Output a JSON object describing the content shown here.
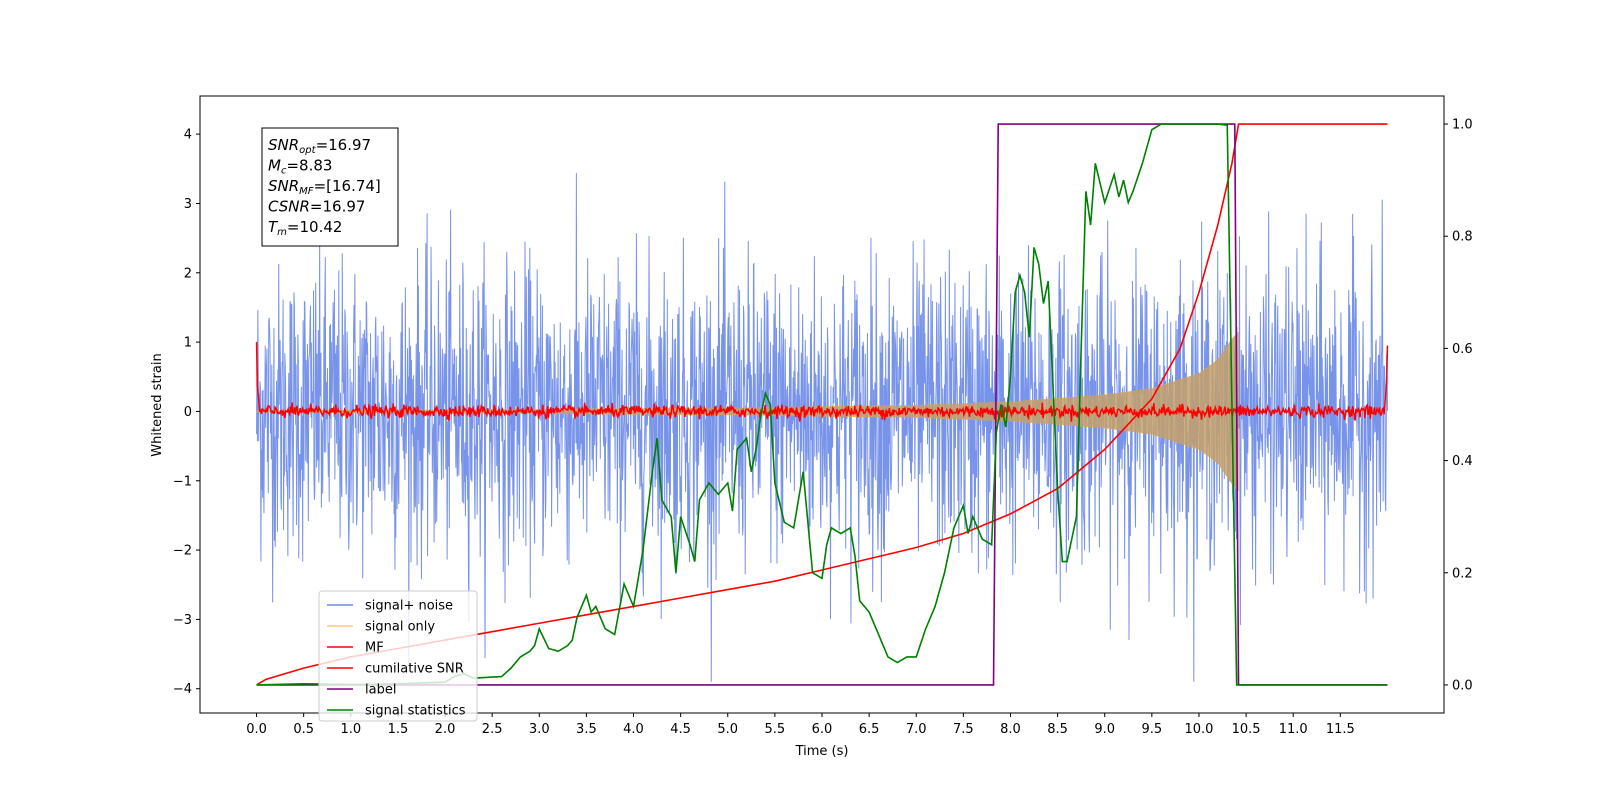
{
  "chart_data": {
    "type": "line",
    "xlabel": "Time (s)",
    "ylabel": "Whitened strain",
    "xlim": [
      -0.6,
      12.6
    ],
    "ylim_left": [
      -4.35,
      4.55
    ],
    "ylim_right": [
      -0.05,
      1.05
    ],
    "x_ticks": [
      "0.0",
      "0.5",
      "1.0",
      "1.5",
      "2.0",
      "2.5",
      "3.0",
      "3.5",
      "4.0",
      "4.5",
      "5.0",
      "5.5",
      "6.0",
      "6.5",
      "7.0",
      "7.5",
      "8.0",
      "8.5",
      "9.0",
      "9.5",
      "10.0",
      "10.5",
      "11.0",
      "11.5"
    ],
    "y_ticks_left": [
      "4",
      "3",
      "2",
      "1",
      "0",
      "−1",
      "−2",
      "−3",
      "−4"
    ],
    "y_ticks_right": [
      "0.0",
      "0.2",
      "0.4",
      "0.6",
      "0.8",
      "1.0"
    ],
    "colors": {
      "signal_noise": "#4a6fe3",
      "signal_only": "#f5a623",
      "mf": "#ff0000",
      "cumulative_snr": "#ff0000",
      "label": "#800080",
      "signal_statistics": "#008000"
    },
    "annotation": {
      "lines": [
        {
          "base": "SNR",
          "sub": "opt",
          "value": "=16.97"
        },
        {
          "base": "M",
          "sub": "c",
          "value": "=8.83"
        },
        {
          "base": "SNR",
          "sub": "MF",
          "value": "=[16.74]"
        },
        {
          "base": "CSNR",
          "sub": "",
          "value": "=16.97"
        },
        {
          "base": "T",
          "sub": "m",
          "value": "=10.42"
        }
      ]
    },
    "legend": {
      "placement": "lower-left",
      "entries": [
        {
          "label": "signal+ noise",
          "color": "#4a6fe3"
        },
        {
          "label": "signal only",
          "color": "#f5a623"
        },
        {
          "label": "MF",
          "color": "#ff0000"
        },
        {
          "label": "cumilative SNR",
          "color": "#ff0000"
        },
        {
          "label": "label",
          "color": "#800080"
        },
        {
          "label": "signal statistics",
          "color": "#008000"
        }
      ]
    },
    "series": [
      {
        "name": "signal+ noise",
        "axis": "left",
        "description_values": "noise band approximately within [-2.5, 2.5] with spikes up to ±4.2, x range [0.0, 12.0]"
      },
      {
        "name": "signal only",
        "axis": "left",
        "chirp_envelope": {
          "x": [
            0,
            5,
            7,
            8,
            9,
            9.5,
            10,
            10.2,
            10.35,
            10.42
          ],
          "amp": [
            0.01,
            0.05,
            0.09,
            0.14,
            0.24,
            0.33,
            0.55,
            0.75,
            1.05,
            1.15
          ]
        }
      },
      {
        "name": "MF",
        "axis": "left",
        "baseline": 0.0,
        "noise_amp": 0.08,
        "start_value": 1.0,
        "end_value": 0.95
      },
      {
        "name": "cumilative SNR",
        "axis": "right",
        "x": [
          0,
          0.1,
          0.5,
          1,
          1.5,
          2,
          2.5,
          3,
          3.5,
          4,
          4.5,
          5,
          5.5,
          6,
          6.5,
          7,
          7.5,
          8,
          8.5,
          9,
          9.5,
          9.8,
          10,
          10.2,
          10.35,
          10.42,
          12.0
        ],
        "y": [
          0.0,
          0.01,
          0.03,
          0.05,
          0.065,
          0.08,
          0.095,
          0.11,
          0.125,
          0.14,
          0.155,
          0.17,
          0.185,
          0.205,
          0.225,
          0.245,
          0.27,
          0.305,
          0.35,
          0.42,
          0.51,
          0.6,
          0.7,
          0.82,
          0.93,
          1.0,
          1.0
        ]
      },
      {
        "name": "label",
        "axis": "right",
        "x": [
          0,
          7.82,
          7.87,
          10.38,
          10.42,
          12.0
        ],
        "y": [
          0,
          0,
          1,
          1,
          0,
          0
        ]
      },
      {
        "name": "signal statistics",
        "axis": "right",
        "x": [
          0.0,
          0.5,
          1.0,
          1.5,
          2.0,
          2.1,
          2.2,
          2.3,
          2.5,
          2.6,
          2.7,
          2.8,
          2.9,
          2.95,
          3.0,
          3.1,
          3.2,
          3.3,
          3.35,
          3.4,
          3.5,
          3.55,
          3.6,
          3.7,
          3.8,
          3.9,
          4.0,
          4.1,
          4.2,
          4.25,
          4.3,
          4.4,
          4.45,
          4.5,
          4.6,
          4.65,
          4.7,
          4.8,
          4.9,
          5.0,
          5.05,
          5.1,
          5.2,
          5.25,
          5.3,
          5.35,
          5.4,
          5.45,
          5.5,
          5.6,
          5.7,
          5.8,
          5.9,
          6.0,
          6.05,
          6.1,
          6.2,
          6.3,
          6.35,
          6.4,
          6.5,
          6.6,
          6.7,
          6.8,
          6.9,
          7.0,
          7.1,
          7.2,
          7.3,
          7.4,
          7.5,
          7.55,
          7.6,
          7.7,
          7.8,
          7.85,
          7.9,
          7.95,
          8.0,
          8.05,
          8.1,
          8.15,
          8.2,
          8.25,
          8.3,
          8.35,
          8.4,
          8.5,
          8.55,
          8.6,
          8.7,
          8.75,
          8.8,
          8.85,
          8.9,
          9.0,
          9.1,
          9.15,
          9.2,
          9.25,
          9.3,
          9.4,
          9.5,
          9.6,
          9.7,
          9.8,
          9.9,
          10.0,
          10.1,
          10.2,
          10.3,
          10.35,
          10.4,
          10.42,
          10.45,
          12.0
        ],
        "y": [
          0.0,
          0.002,
          0.001,
          0.002,
          0.005,
          0.015,
          0.02,
          0.012,
          0.014,
          0.015,
          0.03,
          0.05,
          0.06,
          0.07,
          0.1,
          0.065,
          0.06,
          0.07,
          0.08,
          0.12,
          0.16,
          0.13,
          0.14,
          0.1,
          0.09,
          0.18,
          0.14,
          0.24,
          0.38,
          0.44,
          0.33,
          0.3,
          0.2,
          0.3,
          0.25,
          0.22,
          0.33,
          0.36,
          0.34,
          0.36,
          0.31,
          0.42,
          0.44,
          0.38,
          0.42,
          0.48,
          0.52,
          0.5,
          0.36,
          0.29,
          0.28,
          0.38,
          0.2,
          0.19,
          0.25,
          0.28,
          0.27,
          0.28,
          0.23,
          0.15,
          0.13,
          0.09,
          0.05,
          0.04,
          0.05,
          0.05,
          0.1,
          0.14,
          0.2,
          0.28,
          0.32,
          0.27,
          0.3,
          0.26,
          0.25,
          0.45,
          0.5,
          0.46,
          0.55,
          0.7,
          0.73,
          0.7,
          0.62,
          0.78,
          0.75,
          0.68,
          0.72,
          0.35,
          0.22,
          0.22,
          0.3,
          0.6,
          0.88,
          0.82,
          0.93,
          0.86,
          0.91,
          0.87,
          0.9,
          0.86,
          0.88,
          0.93,
          0.99,
          1.0,
          1.0,
          1.0,
          1.0,
          1.0,
          1.0,
          1.0,
          0.998,
          0.5,
          0.0,
          0.0,
          0.0,
          0.0
        ]
      }
    ]
  }
}
